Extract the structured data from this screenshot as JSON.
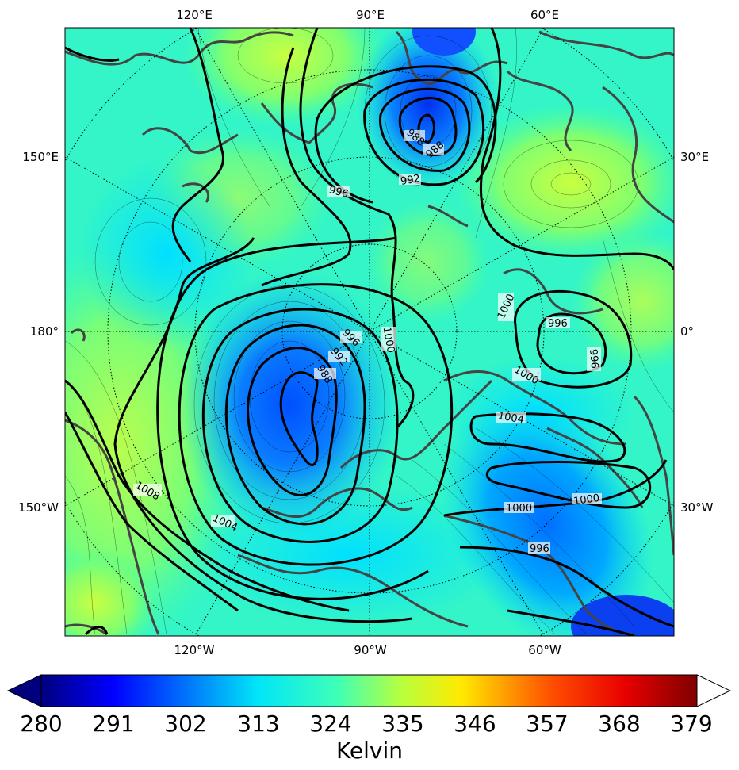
{
  "map": {
    "top_ticks": [
      "120°E",
      "90°E",
      "60°E"
    ],
    "bottom_ticks": [
      "120°W",
      "90°W",
      "60°W"
    ],
    "left_ticks": [
      "150°E",
      "180°",
      "150°W"
    ],
    "right_ticks": [
      "30°E",
      "0°",
      "30°W"
    ],
    "isobar_labels": [
      "988",
      "988",
      "992",
      "996",
      "996",
      "992",
      "988",
      "1000",
      "1000",
      "996",
      "996",
      "1000",
      "1004",
      "1000",
      "1000",
      "996",
      "1008",
      "1004"
    ]
  },
  "colorbar": {
    "title": "Kelvin",
    "ticks": [
      "280",
      "291",
      "302",
      "313",
      "324",
      "335",
      "346",
      "357",
      "368",
      "379"
    ],
    "colors": [
      "#00007f",
      "#0000ff",
      "#0080ff",
      "#00e5f8",
      "#7dff7a",
      "#f8f500",
      "#ff8c00",
      "#ff1e00",
      "#7f0000"
    ]
  }
}
